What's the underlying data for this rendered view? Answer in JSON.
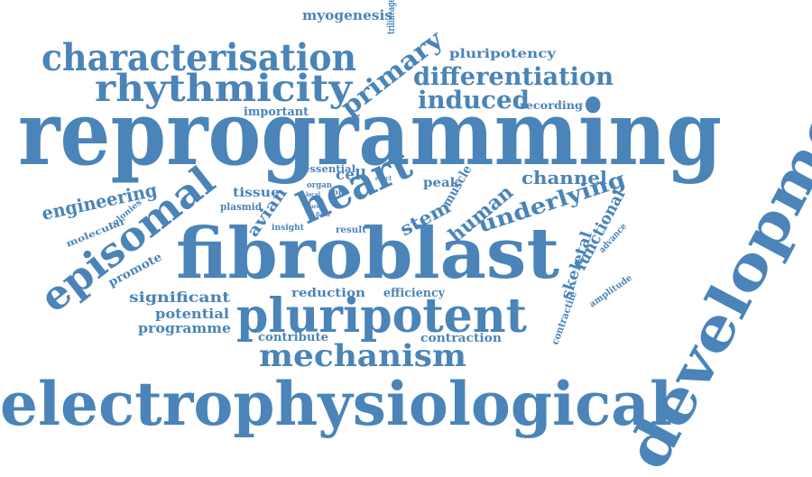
{
  "word_color": "#4a84b8",
  "words": [
    "reprogramming",
    "electrophysiological",
    "development",
    "fibroblast",
    "pluripotent",
    "characterisation",
    "rhythmicity",
    "episomal",
    "heart",
    "mechanism",
    "differentiation",
    "primary",
    "induced",
    "underlying",
    "engineering",
    "human",
    "channel",
    "stem",
    "myogenesis",
    "pluripotency",
    "important",
    "recording",
    "trilineage",
    "cell",
    "peak",
    "essential",
    "tissue",
    "avian",
    "organ",
    "effect",
    "muscle",
    "molecular",
    "colonies",
    "plasmid",
    "local",
    "role",
    "area",
    "field",
    "insight",
    "result",
    "functional",
    "skeletal",
    "advance",
    "promote",
    "significant",
    "potential",
    "programme",
    "reduction",
    "efficiency",
    "contractile",
    "amplitude",
    "contribute",
    "contraction"
  ]
}
